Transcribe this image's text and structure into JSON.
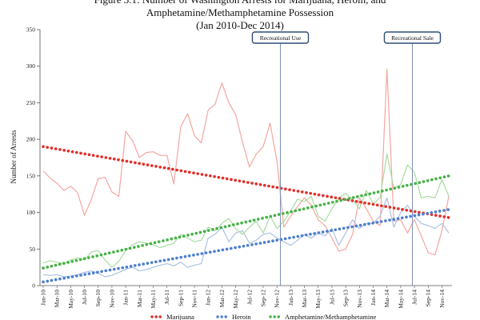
{
  "title_lines": [
    "Figure 3.1: Number of Washington Arrests for Marijuana, Heroin, and",
    "Amphetamine/Methamphetamine Possession",
    "(Jan 2010-Dec 2014)"
  ],
  "chart_data": {
    "type": "line",
    "title": "Figure 3.1: Number of Washington Arrests for Marijuana, Heroin, and Amphetamine/Methamphetamine Possession (Jan 2010-Dec 2014)",
    "xlabel": "",
    "ylabel": "Number of Arrests",
    "ylim": [
      0,
      350
    ],
    "yticks": [
      0,
      50,
      100,
      150,
      200,
      250,
      300,
      350
    ],
    "x_tick_labels": [
      "Jan-10",
      "Mar-10",
      "May-10",
      "Jul-10",
      "Sep-10",
      "Nov-10",
      "Jan-11",
      "Mar-11",
      "May-11",
      "Jul-11",
      "Sep-11",
      "Nov-11",
      "Jan-12",
      "Mar-12",
      "May-12",
      "Jul-12",
      "Sep-12",
      "Nov-12",
      "Jan-13",
      "Mar-13",
      "May-13",
      "Jul-13",
      "Sep-13",
      "Nov-13",
      "Jan-14",
      "Mar-14",
      "May-14",
      "Jul-14",
      "Sep-14",
      "Nov-14"
    ],
    "n_months": 60,
    "series": [
      {
        "name": "Marijuana",
        "color": "#f4a6a0",
        "trend_color": "#e0302a",
        "values": [
          157,
          147,
          140,
          130,
          136,
          127,
          96,
          118,
          146,
          148,
          128,
          122,
          211,
          198,
          175,
          182,
          183,
          178,
          178,
          139,
          217,
          235,
          205,
          195,
          240,
          248,
          277,
          250,
          234,
          196,
          162,
          180,
          190,
          222,
          170,
          80,
          95,
          108,
          120,
          110,
          90,
          82,
          65,
          47,
          50,
          70,
          120,
          105,
          88,
          82,
          296,
          88,
          90,
          72,
          90,
          68,
          45,
          42,
          75,
          122
        ],
        "trend_start": 190,
        "trend_end": 93
      },
      {
        "name": "Heroin",
        "color": "#a9c1e4",
        "trend_color": "#4f7fcf",
        "values": [
          15,
          14,
          15,
          12,
          13,
          15,
          18,
          20,
          17,
          12,
          14,
          18,
          22,
          25,
          20,
          22,
          25,
          28,
          30,
          27,
          32,
          25,
          28,
          30,
          65,
          70,
          80,
          60,
          72,
          75,
          58,
          62,
          70,
          72,
          65,
          60,
          55,
          62,
          70,
          65,
          72,
          68,
          78,
          55,
          72,
          90,
          78,
          85,
          85,
          95,
          120,
          80,
          100,
          110,
          95,
          85,
          82,
          78,
          85,
          72
        ],
        "trend_start": 5,
        "trend_end": 104
      },
      {
        "name": "Amphetamine/Methamphetamine",
        "color": "#a8dca0",
        "trend_color": "#48b248",
        "values": [
          31,
          34,
          32,
          30,
          35,
          38,
          35,
          46,
          48,
          35,
          25,
          33,
          48,
          56,
          60,
          58,
          56,
          52,
          55,
          58,
          70,
          65,
          60,
          62,
          80,
          75,
          85,
          92,
          78,
          70,
          80,
          88,
          72,
          95,
          78,
          88,
          102,
          118,
          115,
          122,
          95,
          88,
          105,
          120,
          126,
          118,
          105,
          130,
          112,
          120,
          180,
          133,
          138,
          165,
          155,
          120,
          122,
          120,
          145,
          122
        ],
        "trend_start": 24,
        "trend_end": 150
      }
    ],
    "annotations": [
      {
        "label": "Recreational Use",
        "month_index": 34.5
      },
      {
        "label": "Recreational Sale",
        "month_index": 53.7
      }
    ],
    "legend_position": "bottom"
  }
}
